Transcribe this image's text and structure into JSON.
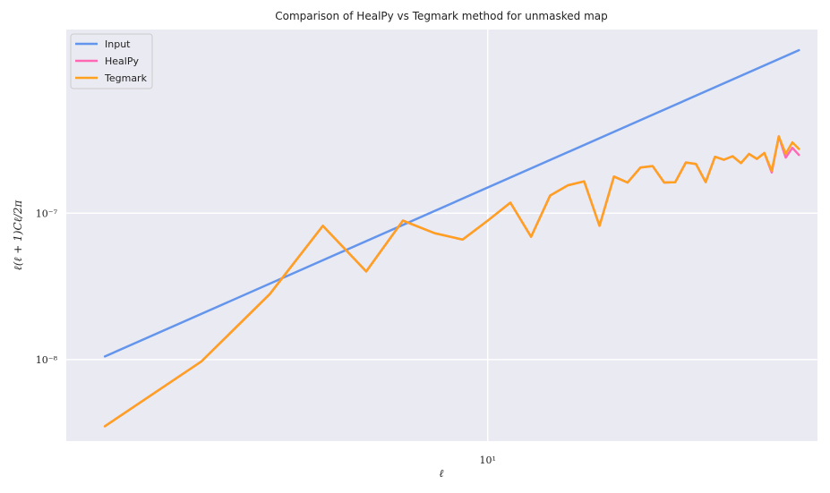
{
  "chart_data": {
    "type": "line",
    "title": "Comparison of HealPy vs Tegmark method for unmasked map",
    "xlabel": "ℓ",
    "ylabel": "ℓ(ℓ + 1)Cℓ/2π",
    "xscale": "log",
    "yscale": "log",
    "xlim": [
      1.7,
      40
    ],
    "ylim": [
      2.77e-09,
      1.8e-06
    ],
    "xticks": [
      {
        "value": 10,
        "label": "10¹"
      }
    ],
    "yticks": [
      {
        "value": 1e-08,
        "label": "10⁻⁸"
      },
      {
        "value": 1e-07,
        "label": "10⁻⁷"
      }
    ],
    "grid": true,
    "legend_position": "top-left",
    "series": [
      {
        "name": "Input",
        "color": "#6495ed",
        "x": [
          2,
          37
        ],
        "y": [
          1.05e-08,
          1.3e-06
        ]
      },
      {
        "name": "HealPy",
        "color": "#ff69b4",
        "x": [
          2,
          3,
          4,
          5,
          6,
          7,
          8,
          9,
          10,
          11,
          12,
          13,
          14,
          15,
          16,
          17,
          18,
          19,
          20,
          21,
          22,
          23,
          24,
          25,
          26,
          27,
          28,
          29,
          30,
          31,
          32,
          33,
          34,
          35,
          36,
          37
        ],
        "y": [
          3.5e-09,
          9.7e-09,
          2.8e-08,
          8.2e-08,
          4e-08,
          8.9e-08,
          7.3e-08,
          6.6e-08,
          8.9e-08,
          1.18e-07,
          6.9e-08,
          1.32e-07,
          1.55e-07,
          1.65e-07,
          8.2e-08,
          1.78e-07,
          1.62e-07,
          2.05e-07,
          2.1e-07,
          1.62e-07,
          1.63e-07,
          2.22e-07,
          2.17e-07,
          1.63e-07,
          2.43e-07,
          2.32e-07,
          2.45e-07,
          2.2e-07,
          2.54e-07,
          2.35e-07,
          2.58e-07,
          1.9e-07,
          3.35e-07,
          2.4e-07,
          2.8e-07,
          2.5e-07
        ]
      },
      {
        "name": "Tegmark",
        "color": "#ffa01e",
        "x": [
          2,
          3,
          4,
          5,
          6,
          7,
          8,
          9,
          10,
          11,
          12,
          13,
          14,
          15,
          16,
          17,
          18,
          19,
          20,
          21,
          22,
          23,
          24,
          25,
          26,
          27,
          28,
          29,
          30,
          31,
          32,
          33,
          34,
          35,
          36,
          37
        ],
        "y": [
          3.5e-09,
          9.7e-09,
          2.8e-08,
          8.2e-08,
          4e-08,
          8.9e-08,
          7.3e-08,
          6.6e-08,
          8.9e-08,
          1.18e-07,
          6.9e-08,
          1.32e-07,
          1.55e-07,
          1.65e-07,
          8.2e-08,
          1.78e-07,
          1.62e-07,
          2.05e-07,
          2.1e-07,
          1.62e-07,
          1.63e-07,
          2.22e-07,
          2.17e-07,
          1.63e-07,
          2.43e-07,
          2.32e-07,
          2.45e-07,
          2.2e-07,
          2.54e-07,
          2.35e-07,
          2.58e-07,
          1.95e-07,
          3.35e-07,
          2.55e-07,
          3.05e-07,
          2.75e-07
        ]
      }
    ]
  }
}
